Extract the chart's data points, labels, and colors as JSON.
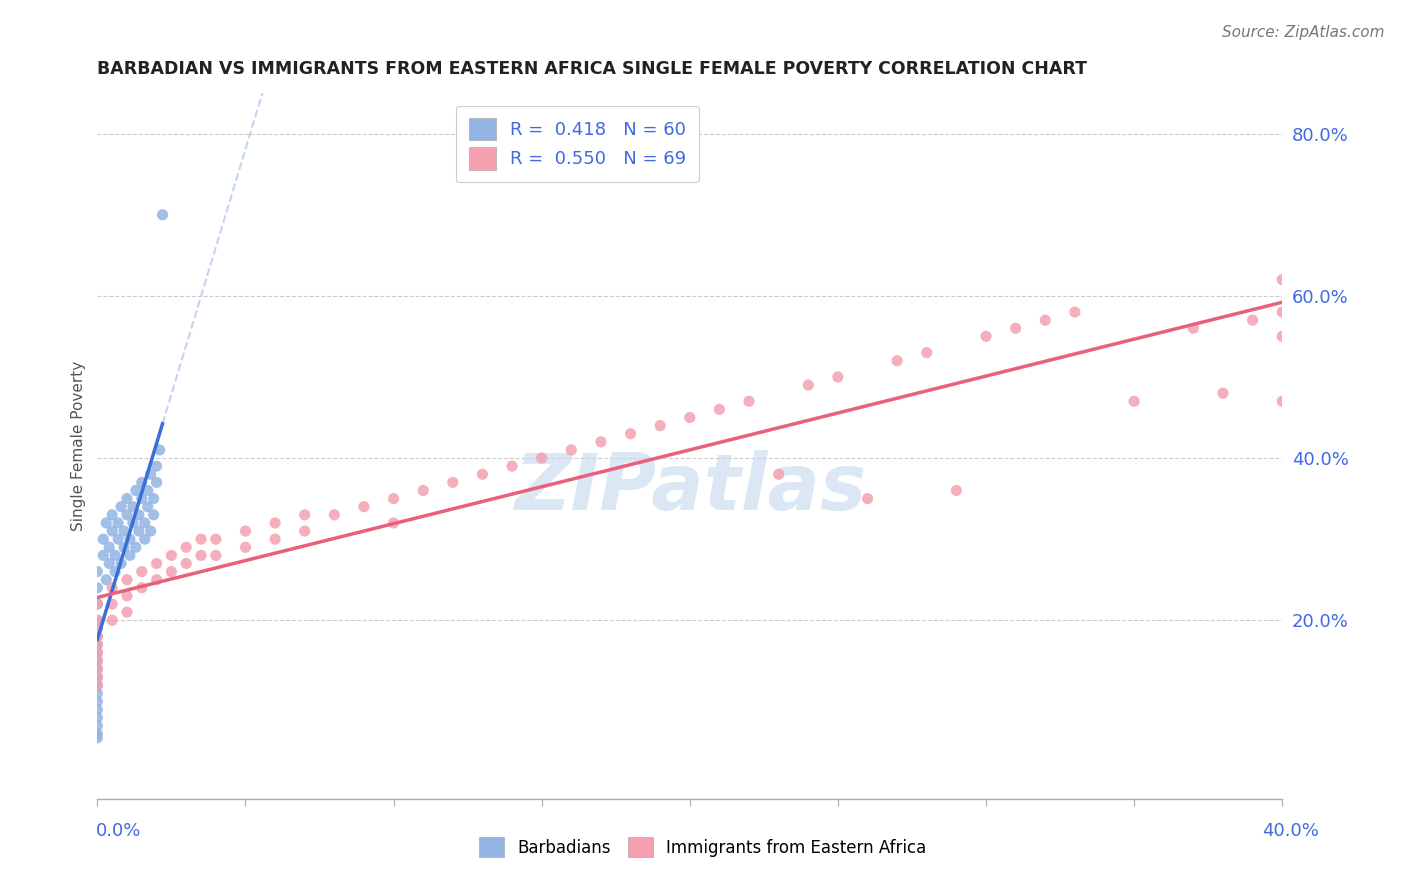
{
  "title": "BARBADIAN VS IMMIGRANTS FROM EASTERN AFRICA SINGLE FEMALE POVERTY CORRELATION CHART",
  "source": "Source: ZipAtlas.com",
  "ylabel": "Single Female Poverty",
  "xlim": [
    0.0,
    0.4
  ],
  "ylim": [
    -0.02,
    0.85
  ],
  "barbadian_R": 0.418,
  "barbadian_N": 60,
  "eastern_africa_R": 0.55,
  "eastern_africa_N": 69,
  "barbadian_color": "#92b4e3",
  "eastern_africa_color": "#f4a0b0",
  "barbadian_line_color": "#3a6fd8",
  "eastern_africa_line_color": "#e8607a",
  "watermark_text": "ZIPatlas",
  "watermark_color": "#c5d8f0",
  "title_color": "#222222",
  "axis_label_color": "#4169e1",
  "gridline_color": "#cccccc",
  "y_tick_vals": [
    0.2,
    0.4,
    0.6,
    0.8
  ],
  "y_tick_labels": [
    "20.0%",
    "40.0%",
    "60.0%",
    "80.0%"
  ],
  "barbadian_x": [
    0.0,
    0.0,
    0.0,
    0.0,
    0.0,
    0.0,
    0.0,
    0.0,
    0.0,
    0.0,
    0.0,
    0.0,
    0.0,
    0.0,
    0.0,
    0.0,
    0.0,
    0.0,
    0.0,
    0.0,
    0.002,
    0.002,
    0.003,
    0.003,
    0.004,
    0.004,
    0.005,
    0.005,
    0.006,
    0.006,
    0.007,
    0.007,
    0.008,
    0.008,
    0.009,
    0.009,
    0.01,
    0.01,
    0.011,
    0.011,
    0.012,
    0.012,
    0.013,
    0.013,
    0.014,
    0.014,
    0.015,
    0.015,
    0.016,
    0.016,
    0.017,
    0.017,
    0.018,
    0.018,
    0.019,
    0.019,
    0.02,
    0.02,
    0.021,
    0.022
  ],
  "barbadian_y": [
    0.22,
    0.2,
    0.19,
    0.18,
    0.17,
    0.16,
    0.15,
    0.14,
    0.13,
    0.12,
    0.11,
    0.1,
    0.09,
    0.08,
    0.07,
    0.06,
    0.055,
    0.22,
    0.24,
    0.26,
    0.28,
    0.3,
    0.32,
    0.25,
    0.27,
    0.29,
    0.31,
    0.33,
    0.26,
    0.28,
    0.3,
    0.32,
    0.34,
    0.27,
    0.29,
    0.31,
    0.33,
    0.35,
    0.28,
    0.3,
    0.32,
    0.34,
    0.36,
    0.29,
    0.31,
    0.33,
    0.35,
    0.37,
    0.3,
    0.32,
    0.34,
    0.36,
    0.38,
    0.31,
    0.33,
    0.35,
    0.37,
    0.39,
    0.41,
    0.7
  ],
  "eastern_africa_x": [
    0.0,
    0.0,
    0.0,
    0.0,
    0.0,
    0.0,
    0.0,
    0.0,
    0.0,
    0.0,
    0.005,
    0.005,
    0.005,
    0.01,
    0.01,
    0.01,
    0.015,
    0.015,
    0.02,
    0.02,
    0.025,
    0.025,
    0.03,
    0.03,
    0.035,
    0.035,
    0.04,
    0.04,
    0.05,
    0.05,
    0.06,
    0.06,
    0.07,
    0.07,
    0.08,
    0.09,
    0.1,
    0.1,
    0.11,
    0.12,
    0.13,
    0.14,
    0.15,
    0.16,
    0.17,
    0.18,
    0.19,
    0.2,
    0.21,
    0.22,
    0.23,
    0.24,
    0.25,
    0.26,
    0.27,
    0.28,
    0.29,
    0.3,
    0.31,
    0.32,
    0.33,
    0.35,
    0.37,
    0.38,
    0.39,
    0.4,
    0.4,
    0.4,
    0.4
  ],
  "eastern_africa_y": [
    0.22,
    0.2,
    0.19,
    0.18,
    0.17,
    0.16,
    0.15,
    0.14,
    0.13,
    0.12,
    0.24,
    0.22,
    0.2,
    0.25,
    0.23,
    0.21,
    0.26,
    0.24,
    0.27,
    0.25,
    0.28,
    0.26,
    0.29,
    0.27,
    0.3,
    0.28,
    0.3,
    0.28,
    0.31,
    0.29,
    0.32,
    0.3,
    0.33,
    0.31,
    0.33,
    0.34,
    0.35,
    0.32,
    0.36,
    0.37,
    0.38,
    0.39,
    0.4,
    0.41,
    0.42,
    0.43,
    0.44,
    0.45,
    0.46,
    0.47,
    0.38,
    0.49,
    0.5,
    0.35,
    0.52,
    0.53,
    0.36,
    0.55,
    0.56,
    0.57,
    0.58,
    0.47,
    0.56,
    0.48,
    0.57,
    0.58,
    0.47,
    0.55,
    0.62
  ]
}
